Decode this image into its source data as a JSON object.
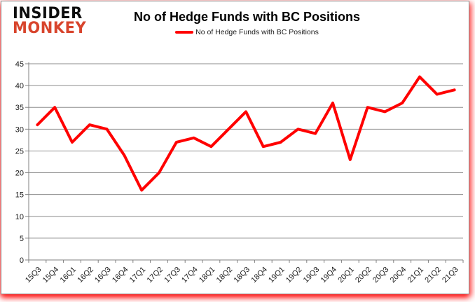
{
  "header": {
    "logo_line1": "INSIDER",
    "logo_line2": "MONKEY",
    "title": "No of Hedge Funds with BC Positions"
  },
  "legend": {
    "label": "No of Hedge Funds with BC Positions"
  },
  "chart_data": {
    "type": "line",
    "title": "No of Hedge Funds with BC Positions",
    "categories": [
      "15Q3",
      "15Q4",
      "16Q1",
      "16Q2",
      "16Q3",
      "16Q4",
      "17Q1",
      "17Q2",
      "17Q3",
      "17Q4",
      "18Q1",
      "18Q2",
      "18Q3",
      "18Q4",
      "19Q1",
      "19Q2",
      "19Q3",
      "19Q4",
      "20Q1",
      "20Q2",
      "20Q3",
      "20Q4",
      "21Q1",
      "21Q2",
      "21Q3"
    ],
    "series": [
      {
        "name": "No of Hedge Funds with BC Positions",
        "color": "#ff0000",
        "values": [
          31,
          35,
          27,
          31,
          30,
          24,
          16,
          20,
          27,
          28,
          26,
          30,
          34,
          26,
          27,
          30,
          29,
          36,
          23,
          35,
          34,
          36,
          42,
          38,
          39
        ]
      }
    ],
    "xlabel": "",
    "ylabel": "",
    "ylim": [
      0,
      45
    ],
    "yticks": [
      0,
      5,
      10,
      15,
      20,
      25,
      30,
      35,
      40,
      45
    ],
    "grid": true,
    "legend_position": "top"
  },
  "colors": {
    "line": "#ff0000",
    "grid": "#8e8e8e",
    "axis": "#808080",
    "text": "#1a1a1a",
    "logo_black": "#0d0d0d",
    "logo_red": "#d8442c",
    "frame_glow": "#ff0000"
  }
}
